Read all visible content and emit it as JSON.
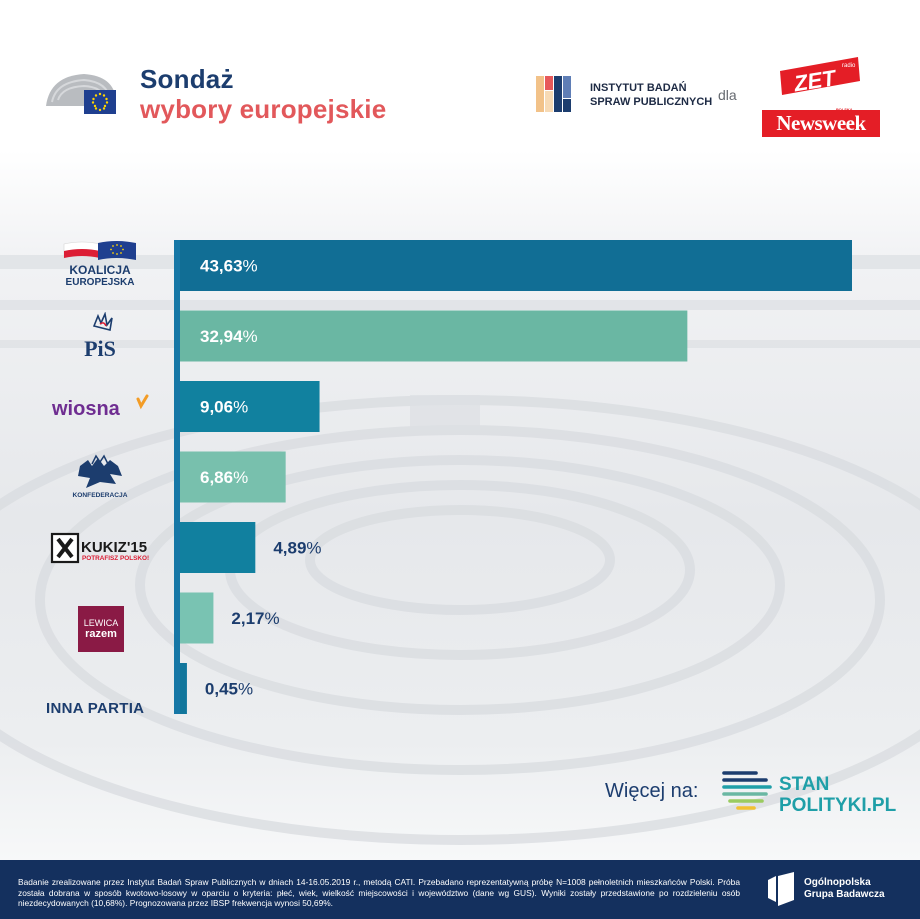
{
  "header": {
    "title_line1": "Sondaż",
    "title_line2": "wybory europejskie",
    "institute_line1": "INSTYTUT BADAŃ",
    "institute_line2": "SPRAW PUBLICZNYCH",
    "for_label": "dla",
    "partner1": "ZET",
    "partner1_small": "radio",
    "partner2": "Newsweek",
    "partner2_small": "POLSKA"
  },
  "party_logos": {
    "ke_line1": "KOALICJA",
    "ke_line2": "EUROPEJSKA",
    "pis": "PiS",
    "wiosna": "wiosna",
    "konf": "KONFEDERACJA",
    "kukiz": "KUKIZ'15",
    "kukiz_sub": "POTRAFISZ POLSKO!",
    "razem_line1": "LEWICA",
    "razem_line2": "razem"
  },
  "chart_data": {
    "type": "bar",
    "orientation": "horizontal",
    "title": "Sondaż wybory europejskie",
    "categories": [
      "KOALICJA EUROPEJSKA",
      "PiS",
      "wiosna",
      "KONFEDERACJA",
      "KUKIZ'15",
      "LEWICA razem",
      "INNA PARTIA"
    ],
    "values": [
      43.63,
      32.94,
      9.06,
      6.86,
      4.89,
      2.17,
      0.45
    ],
    "value_labels": [
      "43,63",
      "32,94",
      "9,06",
      "6,86",
      "4,89",
      "2,17",
      "0,45"
    ],
    "unit": "%",
    "bar_colors": [
      "#116e95",
      "#6ab7a3",
      "#11819f",
      "#78c0ad",
      "#11809f",
      "#79c3b2",
      "#11769c"
    ],
    "xlim": [
      0,
      43.63
    ],
    "grid": false,
    "legend": "none"
  },
  "more": {
    "label": "Więcej na:",
    "site_line1": "STAN",
    "site_line2": "POLITYKI.PL"
  },
  "footer": {
    "note": "Badanie zrealizowane przez Instytut Badań Spraw Publicznych w dniach 14-16.05.2019 r., metodą CATI. Przebadano reprezentatywną próbę N=1008 pełnoletnich mieszkańców Polski. Próba została dobrana w sposób kwotowo-losowy w oparciu o kryteria: płeć, wiek, wielkość miejscowości i województwo (dane wg GUS). Wyniki zostały przedstawione po rozdzieleniu osób niezdecydowanych (10,68%). Prognozowana przez IBSP frekwencja wynosi 50,69%.",
    "org_line1": "Ogólnopolska",
    "org_line2": "Grupa Badawcza"
  },
  "colors": {
    "navy": "#1c3d6e",
    "coral": "#e2585b",
    "footer_bg": "#14305e",
    "axis": "#1677a6"
  }
}
